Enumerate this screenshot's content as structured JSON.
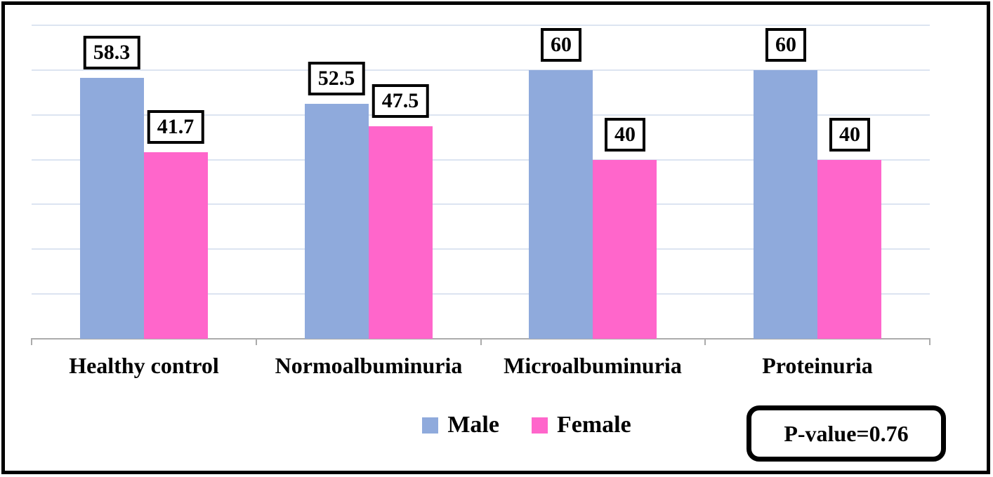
{
  "chart_data": {
    "type": "bar",
    "title": "",
    "categories": [
      "Healthy control",
      "Normoalbuminuria",
      "Microalbuminuria",
      "Proteinuria"
    ],
    "series": [
      {
        "name": "Male",
        "color": "#8FAADC",
        "values": [
          58.3,
          52.5,
          60,
          60
        ]
      },
      {
        "name": "Female",
        "color": "#FF66CB",
        "values": [
          41.7,
          47.5,
          40,
          40
        ]
      }
    ],
    "value_labels": [
      [
        "58.3",
        "52.5",
        "60",
        "60"
      ],
      [
        "41.7",
        "47.5",
        "40",
        "40"
      ]
    ],
    "ylim": [
      0,
      70
    ],
    "gridline_step": 10,
    "grid": true,
    "legend_position": "bottom",
    "value_labels_boxed": true
  },
  "annotation": {
    "pvalue_text": "P-value=0.76"
  },
  "colors": {
    "male": "#8FAADC",
    "female": "#FF66CB",
    "gridline": "#DCE4F1",
    "axis": "#ABABAB",
    "label_box_border": "#000000",
    "figure_border": "#000000"
  }
}
